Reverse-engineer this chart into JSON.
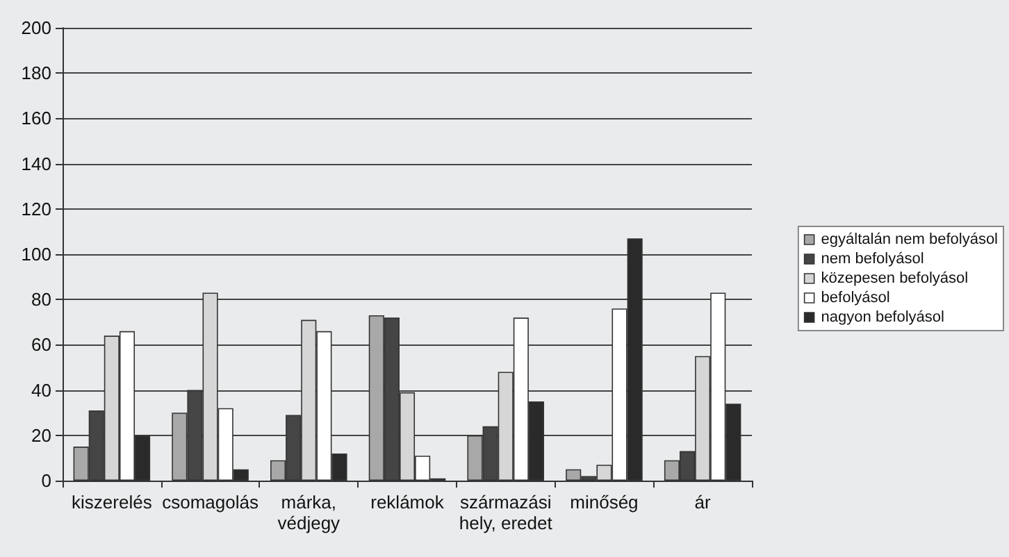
{
  "chart_data": {
    "type": "bar",
    "categories": [
      "kiszerelés",
      "csomagolás",
      "márka,\nvédjegy",
      "reklámok",
      "származási\nhely, eredet",
      "minőség",
      "ár"
    ],
    "series": [
      {
        "name": "egyáltalán nem befolyásol",
        "color": "#a8a8a8",
        "values": [
          15,
          30,
          9,
          73,
          20,
          5,
          9
        ]
      },
      {
        "name": "nem befolyásol",
        "color": "#454545",
        "values": [
          31,
          40,
          29,
          72,
          24,
          2,
          13
        ]
      },
      {
        "name": "közepesen befolyásol",
        "color": "#d6d6d6",
        "values": [
          64,
          83,
          71,
          39,
          48,
          7,
          55
        ]
      },
      {
        "name": "befolyásol",
        "color": "#ffffff",
        "values": [
          66,
          32,
          66,
          11,
          72,
          76,
          83
        ]
      },
      {
        "name": "nagyon befolyásol",
        "color": "#2a2a2a",
        "values": [
          20,
          5,
          12,
          1,
          35,
          107,
          34
        ]
      }
    ],
    "ylim": [
      0,
      200
    ],
    "yticks": [
      0,
      20,
      40,
      60,
      80,
      100,
      120,
      140,
      160,
      180,
      200
    ],
    "grid": "y",
    "legend": "right"
  }
}
